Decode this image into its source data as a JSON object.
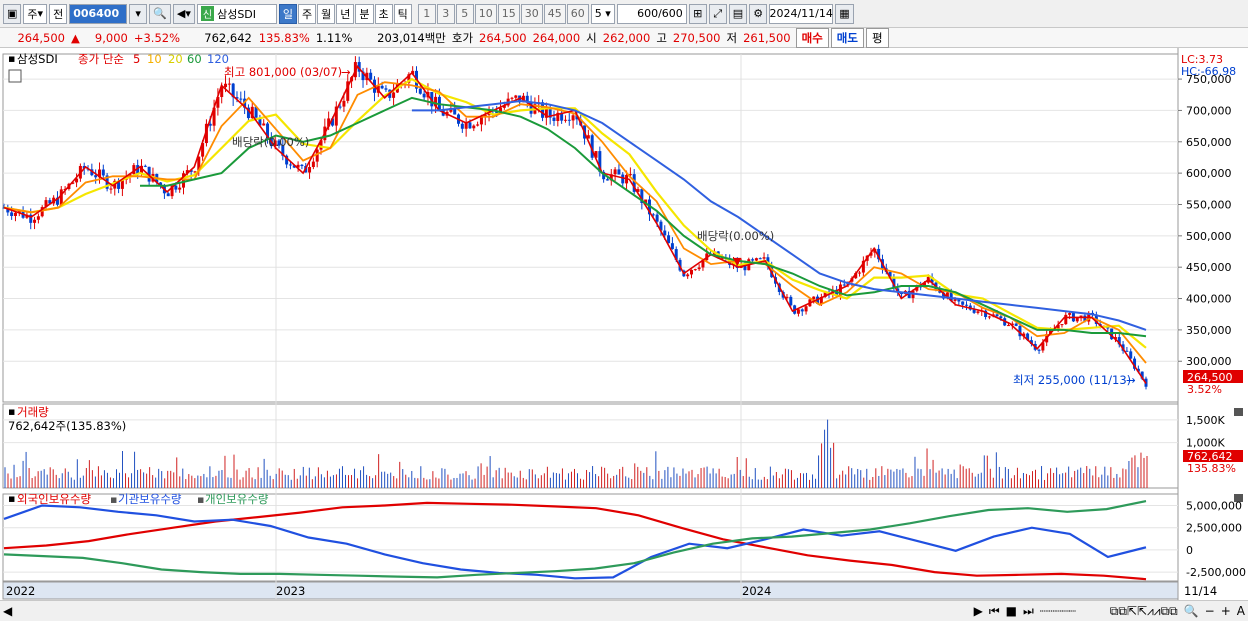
{
  "toolbar": {
    "period_label": "주",
    "prev_label": "전",
    "code": "006400",
    "tag": "신",
    "stock_name": "삼성SDI",
    "periods": [
      "일",
      "주",
      "월",
      "년",
      "분",
      "초",
      "틱"
    ],
    "active_period": "일",
    "intervals": [
      "1",
      "3",
      "5",
      "10",
      "15",
      "30",
      "45",
      "60"
    ],
    "interval_value": "5",
    "count_label": "600/600",
    "date": "2024/11/14"
  },
  "quote": {
    "price": "264,500",
    "change": "9,000",
    "change_pct": "+3.52%",
    "volume": "762,642",
    "volume_ratio": "135.83%",
    "turnover_pct": "1.11%",
    "amount": "203,014백만",
    "bid_label": "호가",
    "bid1": "264,500",
    "bid2": "264,000",
    "open_label": "시",
    "open": "262,000",
    "high_label": "고",
    "high": "270,500",
    "low_label": "저",
    "low": "261,500",
    "buy_label": "매수",
    "sell_label": "매도",
    "extra_label": "평"
  },
  "price_panel": {
    "stock_name": "삼성SDI",
    "legend_prefix": "종가 단순",
    "ma_labels": [
      "5",
      "10",
      "20",
      "60",
      "120"
    ],
    "lc_label": "LC:3.73",
    "hc_label": "HC:-66.98",
    "high_annot": "최고 801,000 (03/07)",
    "low_annot": "최저 255,000 (11/13)",
    "div_annot_1": "배당락(0.00%)",
    "div_annot_2": "배당락(0.00%)",
    "current_price_label": "264,500",
    "current_pct_label": "3.52%"
  },
  "volume_panel": {
    "title": "거래량",
    "value_label": "762,642주(135.83%)",
    "current_label": "762,642",
    "current_pct_label": "135.83%"
  },
  "holding_panel": {
    "labels": [
      "외국인보유수량",
      "기관보유수량",
      "개인보유수량"
    ]
  },
  "xaxis": {
    "labels": [
      "2022",
      "2023",
      "2024"
    ],
    "right_label": "11/14"
  },
  "colors": {
    "up": "#e00000",
    "down": "#0040d0",
    "ma5": "#e00000",
    "ma10": "#ff8c00",
    "ma20": "#f5e600",
    "ma60": "#1a9a3a",
    "ma120": "#3060e0",
    "foreign": "#e00000",
    "institution": "#2050e0",
    "individual": "#2e9a5a"
  },
  "chart_data": [
    {
      "type": "line",
      "title": "삼성SDI",
      "y_ticks": [
        300000,
        350000,
        400000,
        450000,
        500000,
        550000,
        600000,
        650000,
        700000,
        750000
      ],
      "y_tick_labels": [
        "300,000",
        "350,000",
        "400,000",
        "450,000",
        "500,000",
        "550,000",
        "600,000",
        "650,000",
        "700,000",
        "750,000"
      ],
      "ylim": [
        235000,
        790000
      ],
      "x_labels": [
        "2022",
        "2023",
        "2024"
      ],
      "series": [
        {
          "name": "5",
          "values": [
            545000,
            530000,
            560000,
            610000,
            580000,
            610000,
            570000,
            610000,
            740000,
            700000,
            640000,
            600000,
            680000,
            770000,
            720000,
            760000,
            700000,
            680000,
            700000,
            720000,
            690000,
            700000,
            600000,
            590000,
            520000,
            440000,
            470000,
            450000,
            460000,
            380000,
            400000,
            420000,
            480000,
            400000,
            430000,
            390000,
            380000,
            360000,
            320000,
            370000,
            370000,
            330000,
            264500
          ]
        },
        {
          "name": "60",
          "values": [
            null,
            null,
            null,
            null,
            null,
            580000,
            580000,
            590000,
            600000,
            640000,
            660000,
            650000,
            660000,
            680000,
            700000,
            720000,
            710000,
            705000,
            700000,
            690000,
            670000,
            640000,
            600000,
            570000,
            540000,
            500000,
            470000,
            460000,
            455000,
            440000,
            420000,
            405000,
            410000,
            420000,
            420000,
            410000,
            390000,
            370000,
            350000,
            350000,
            345000,
            345000,
            340000
          ]
        },
        {
          "name": "120",
          "values": [
            null,
            null,
            null,
            null,
            null,
            null,
            null,
            null,
            null,
            null,
            null,
            null,
            null,
            null,
            null,
            700000,
            700000,
            705000,
            710000,
            715000,
            710000,
            700000,
            680000,
            650000,
            620000,
            590000,
            555000,
            530000,
            500000,
            470000,
            440000,
            425000,
            415000,
            410000,
            405000,
            400000,
            395000,
            390000,
            385000,
            380000,
            375000,
            365000,
            350000
          ]
        }
      ]
    },
    {
      "type": "bar",
      "title": "거래량",
      "y_tick_labels": [
        "1,500K",
        "1,000K"
      ],
      "ylim": [
        0,
        1850000
      ]
    },
    {
      "type": "line",
      "y_tick_labels": [
        "5,000,000",
        "2,500,000",
        "0",
        "-2,500,000"
      ],
      "y_ticks": [
        5000000,
        2500000,
        0,
        -2500000
      ],
      "ylim": [
        -3500000,
        6300000
      ],
      "series": [
        {
          "name": "외국인보유수량",
          "values": [
            200000,
            500000,
            1000000,
            1800000,
            2500000,
            3200000,
            3700000,
            4200000,
            4800000,
            5000000,
            5300000,
            5200000,
            5100000,
            4900000,
            4700000,
            3900000,
            2500000,
            1200000,
            300000,
            -600000,
            -1200000,
            -1700000,
            -2500000,
            -2900000,
            -2800000,
            -2700000,
            -2900000,
            -3300000
          ]
        },
        {
          "name": "기관보유수량",
          "values": [
            3500000,
            5000000,
            4800000,
            4300000,
            3900000,
            3200000,
            3400000,
            2700000,
            1400000,
            700000,
            -500000,
            -1500000,
            -2200000,
            -2600000,
            -2800000,
            -3200000,
            -3100000,
            -800000,
            700000,
            200000,
            1200000,
            2300000,
            1600000,
            2100000,
            1000000,
            -100000,
            1500000,
            2500000,
            1800000,
            -800000,
            300000
          ]
        },
        {
          "name": "개인보유수량",
          "values": [
            -500000,
            -700000,
            -900000,
            -1500000,
            -2200000,
            -2500000,
            -2700000,
            -2700000,
            -2800000,
            -2900000,
            -3000000,
            -3100000,
            -2800000,
            -2600000,
            -2400000,
            -2100000,
            -1500000,
            -300000,
            700000,
            1300000,
            1500000,
            1900000,
            2300000,
            3000000,
            3800000,
            4500000,
            4700000,
            4300000,
            4600000,
            5500000
          ]
        }
      ]
    }
  ]
}
